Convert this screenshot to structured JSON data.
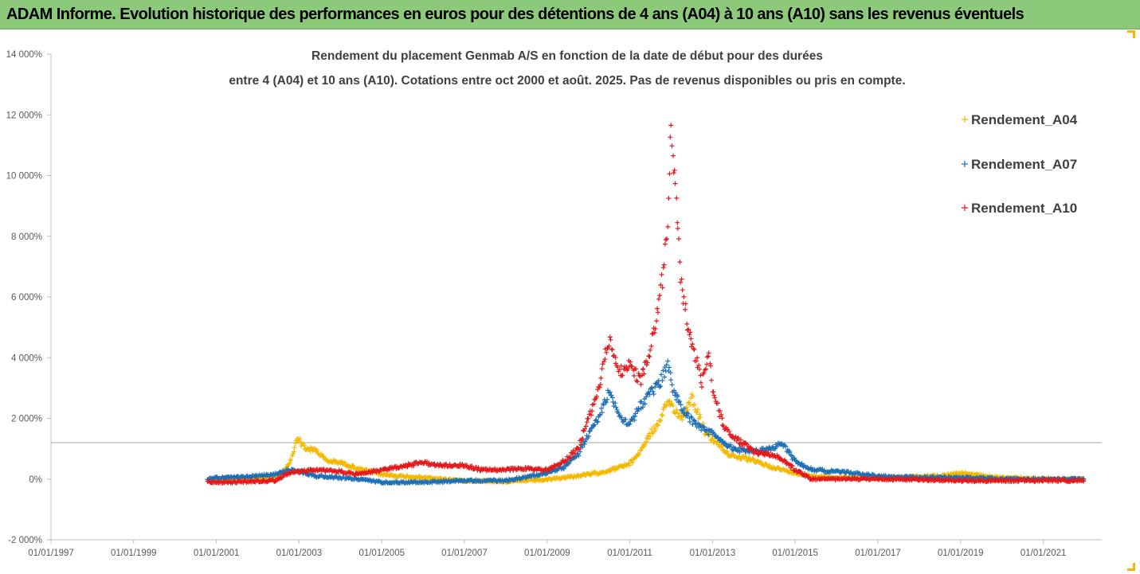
{
  "banner": {
    "title": "ADAM Informe. Evolution historique des performances en euros pour des détentions de 4 ans (A04) à 10 ans (A10) sans les revenus éventuels"
  },
  "colors": {
    "banner_bg": "#8cc97a",
    "A04": "#f5b800",
    "A07": "#1f6fb4",
    "A10": "#e31a1c",
    "axis": "#bfbfbf",
    "grid": "#d9d9d9"
  },
  "chart_data": {
    "type": "scatter",
    "title_lines": [
      "Rendement du placement Genmab A/S en fonction de la date de début pour des durées",
      "entre 4 (A04) et 10 ans (A10). Cotations entre oct 2000 et août. 2025. Pas de revenus disponibles ou pris en compte."
    ],
    "xlabel": "",
    "ylabel": "",
    "ylim": [
      -2000,
      14000
    ],
    "y_ticks": [
      -2000,
      0,
      2000,
      4000,
      6000,
      8000,
      10000,
      12000,
      14000
    ],
    "y_tick_labels": [
      "-2 000%",
      "0%",
      "2 000%",
      "4 000%",
      "6 000%",
      "8 000%",
      "10 000%",
      "12 000%",
      "14 000%"
    ],
    "xlim": [
      "1997-01-01",
      "2022-06-01"
    ],
    "x_tick_labels": [
      "01/01/1997",
      "01/01/1999",
      "01/01/2001",
      "01/01/2003",
      "01/01/2005",
      "01/01/2007",
      "01/01/2009",
      "01/01/2011",
      "01/01/2013",
      "01/01/2015",
      "01/01/2017",
      "01/01/2019",
      "01/01/2021"
    ],
    "x_tick_dates": [
      "1997-01-01",
      "1999-01-01",
      "2001-01-01",
      "2003-01-01",
      "2005-01-01",
      "2007-01-01",
      "2009-01-01",
      "2011-01-01",
      "2013-01-01",
      "2015-01-01",
      "2017-01-01",
      "2019-01-01",
      "2021-01-01"
    ],
    "reference_line_y": 1200,
    "grid": false,
    "legend_position": "right",
    "marker": "+",
    "series": [
      {
        "name": "Rendement_A04",
        "color": "#f5b800",
        "points": [
          [
            "2000-10-15",
            0
          ],
          [
            "2001-01-01",
            0
          ],
          [
            "2001-07-01",
            20
          ],
          [
            "2002-01-01",
            30
          ],
          [
            "2002-06-01",
            60
          ],
          [
            "2002-09-01",
            300
          ],
          [
            "2002-11-01",
            700
          ],
          [
            "2002-12-15",
            1400
          ],
          [
            "2003-01-15",
            1200
          ],
          [
            "2003-03-01",
            1000
          ],
          [
            "2003-06-01",
            950
          ],
          [
            "2003-09-01",
            600
          ],
          [
            "2004-01-01",
            550
          ],
          [
            "2004-06-01",
            350
          ],
          [
            "2005-01-01",
            150
          ],
          [
            "2005-06-01",
            100
          ],
          [
            "2006-01-01",
            50
          ],
          [
            "2007-01-01",
            -50
          ],
          [
            "2008-01-01",
            -80
          ],
          [
            "2009-01-01",
            -20
          ],
          [
            "2009-06-01",
            50
          ],
          [
            "2010-01-01",
            150
          ],
          [
            "2010-06-01",
            250
          ],
          [
            "2011-01-01",
            500
          ],
          [
            "2011-04-01",
            900
          ],
          [
            "2011-07-01",
            1500
          ],
          [
            "2011-10-01",
            1900
          ],
          [
            "2011-12-01",
            2600
          ],
          [
            "2012-02-01",
            2300
          ],
          [
            "2012-04-01",
            2000
          ],
          [
            "2012-07-01",
            2700
          ],
          [
            "2012-09-01",
            2100
          ],
          [
            "2012-11-01",
            1500
          ],
          [
            "2013-01-01",
            1300
          ],
          [
            "2013-06-01",
            800
          ],
          [
            "2014-01-01",
            600
          ],
          [
            "2014-06-01",
            400
          ],
          [
            "2015-01-01",
            200
          ],
          [
            "2015-06-01",
            100
          ],
          [
            "2016-01-01",
            50
          ],
          [
            "2017-01-01",
            50
          ],
          [
            "2018-01-01",
            80
          ],
          [
            "2018-06-01",
            100
          ],
          [
            "2019-01-01",
            200
          ],
          [
            "2019-06-01",
            120
          ],
          [
            "2020-01-01",
            50
          ],
          [
            "2021-01-01",
            0
          ],
          [
            "2022-01-01",
            0
          ]
        ]
      },
      {
        "name": "Rendement_A07",
        "color": "#1f6fb4",
        "points": [
          [
            "2000-10-15",
            0
          ],
          [
            "2001-01-01",
            50
          ],
          [
            "2001-06-01",
            50
          ],
          [
            "2002-01-01",
            100
          ],
          [
            "2002-06-01",
            150
          ],
          [
            "2002-10-01",
            300
          ],
          [
            "2003-01-01",
            250
          ],
          [
            "2003-06-01",
            100
          ],
          [
            "2004-01-01",
            50
          ],
          [
            "2004-06-01",
            0
          ],
          [
            "2005-01-01",
            -100
          ],
          [
            "2006-01-01",
            -100
          ],
          [
            "2007-01-01",
            -50
          ],
          [
            "2008-01-01",
            -50
          ],
          [
            "2008-06-01",
            50
          ],
          [
            "2009-01-01",
            200
          ],
          [
            "2009-06-01",
            400
          ],
          [
            "2009-10-01",
            800
          ],
          [
            "2010-01-01",
            1500
          ],
          [
            "2010-04-01",
            2000
          ],
          [
            "2010-07-01",
            2900
          ],
          [
            "2010-10-01",
            2100
          ],
          [
            "2011-01-01",
            1800
          ],
          [
            "2011-04-01",
            2400
          ],
          [
            "2011-07-01",
            2800
          ],
          [
            "2011-10-01",
            3200
          ],
          [
            "2011-12-01",
            3800
          ],
          [
            "2012-02-01",
            2800
          ],
          [
            "2012-05-01",
            2200
          ],
          [
            "2012-08-01",
            1800
          ],
          [
            "2012-11-01",
            1600
          ],
          [
            "2013-01-01",
            1500
          ],
          [
            "2013-04-01",
            1200
          ],
          [
            "2013-07-01",
            1000
          ],
          [
            "2014-01-01",
            900
          ],
          [
            "2014-06-01",
            1000
          ],
          [
            "2014-09-01",
            1200
          ],
          [
            "2015-01-01",
            600
          ],
          [
            "2015-06-01",
            300
          ],
          [
            "2016-01-01",
            250
          ],
          [
            "2016-06-01",
            200
          ],
          [
            "2017-01-01",
            100
          ],
          [
            "2018-01-01",
            50
          ],
          [
            "2019-01-01",
            50
          ],
          [
            "2020-01-01",
            0
          ],
          [
            "2021-01-01",
            0
          ],
          [
            "2022-01-01",
            0
          ]
        ]
      },
      {
        "name": "Rendement_A10",
        "color": "#e31a1c",
        "points": [
          [
            "2000-10-15",
            -100
          ],
          [
            "2001-06-01",
            -100
          ],
          [
            "2002-06-01",
            -50
          ],
          [
            "2002-10-01",
            200
          ],
          [
            "2003-01-01",
            250
          ],
          [
            "2003-06-01",
            300
          ],
          [
            "2004-01-01",
            250
          ],
          [
            "2004-06-01",
            150
          ],
          [
            "2005-01-01",
            300
          ],
          [
            "2005-06-01",
            400
          ],
          [
            "2006-01-01",
            550
          ],
          [
            "2006-06-01",
            450
          ],
          [
            "2007-01-01",
            450
          ],
          [
            "2007-06-01",
            300
          ],
          [
            "2008-01-01",
            300
          ],
          [
            "2008-06-01",
            350
          ],
          [
            "2009-01-01",
            300
          ],
          [
            "2009-06-01",
            600
          ],
          [
            "2009-10-01",
            1000
          ],
          [
            "2010-01-01",
            2000
          ],
          [
            "2010-04-01",
            3000
          ],
          [
            "2010-07-01",
            4600
          ],
          [
            "2010-10-01",
            3500
          ],
          [
            "2011-01-01",
            3800
          ],
          [
            "2011-04-01",
            3200
          ],
          [
            "2011-07-01",
            4200
          ],
          [
            "2011-09-01",
            5500
          ],
          [
            "2011-11-01",
            7000
          ],
          [
            "2011-12-01",
            8500
          ],
          [
            "2012-01-01",
            11800
          ],
          [
            "2012-02-01",
            9800
          ],
          [
            "2012-03-01",
            8000
          ],
          [
            "2012-04-01",
            6300
          ],
          [
            "2012-06-01",
            5000
          ],
          [
            "2012-08-01",
            4000
          ],
          [
            "2012-10-01",
            3200
          ],
          [
            "2012-12-01",
            4200
          ],
          [
            "2013-01-01",
            3000
          ],
          [
            "2013-04-01",
            1800
          ],
          [
            "2013-07-01",
            1400
          ],
          [
            "2014-01-01",
            900
          ],
          [
            "2014-06-01",
            800
          ],
          [
            "2014-09-01",
            700
          ],
          [
            "2015-01-01",
            300
          ],
          [
            "2015-06-01",
            0
          ],
          [
            "2016-01-01",
            0
          ],
          [
            "2017-01-01",
            0
          ],
          [
            "2018-01-01",
            -20
          ],
          [
            "2019-01-01",
            -50
          ],
          [
            "2020-01-01",
            -50
          ],
          [
            "2021-01-01",
            -50
          ],
          [
            "2022-01-01",
            -50
          ]
        ]
      }
    ]
  }
}
